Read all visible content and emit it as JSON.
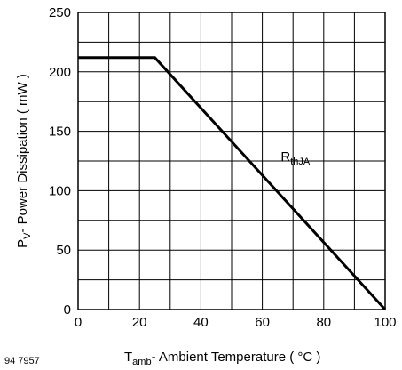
{
  "chart_data": {
    "type": "line",
    "x_axis": {
      "label_main": "T",
      "label_sub": "amb",
      "label_rest": "- Ambient Temperature ( °C )",
      "range": [
        0,
        100
      ],
      "ticks": [
        0,
        20,
        40,
        60,
        80,
        100
      ],
      "grid_step": 10
    },
    "y_axis": {
      "label_main": "P",
      "label_sub": "V",
      "label_rest": "- Power Dissipation ( mW )",
      "range": [
        0,
        250
      ],
      "ticks": [
        0,
        50,
        100,
        150,
        200,
        250
      ],
      "grid_step": 25
    },
    "grid": true,
    "series": [
      {
        "label_main": "R",
        "label_sub": "thJA",
        "x": [
          0,
          25,
          100
        ],
        "y": [
          212,
          212,
          0
        ]
      }
    ],
    "annotation_anchor": {
      "x": 66,
      "y": 125
    },
    "line_color": "#000000",
    "doc_code": "94 7957"
  }
}
